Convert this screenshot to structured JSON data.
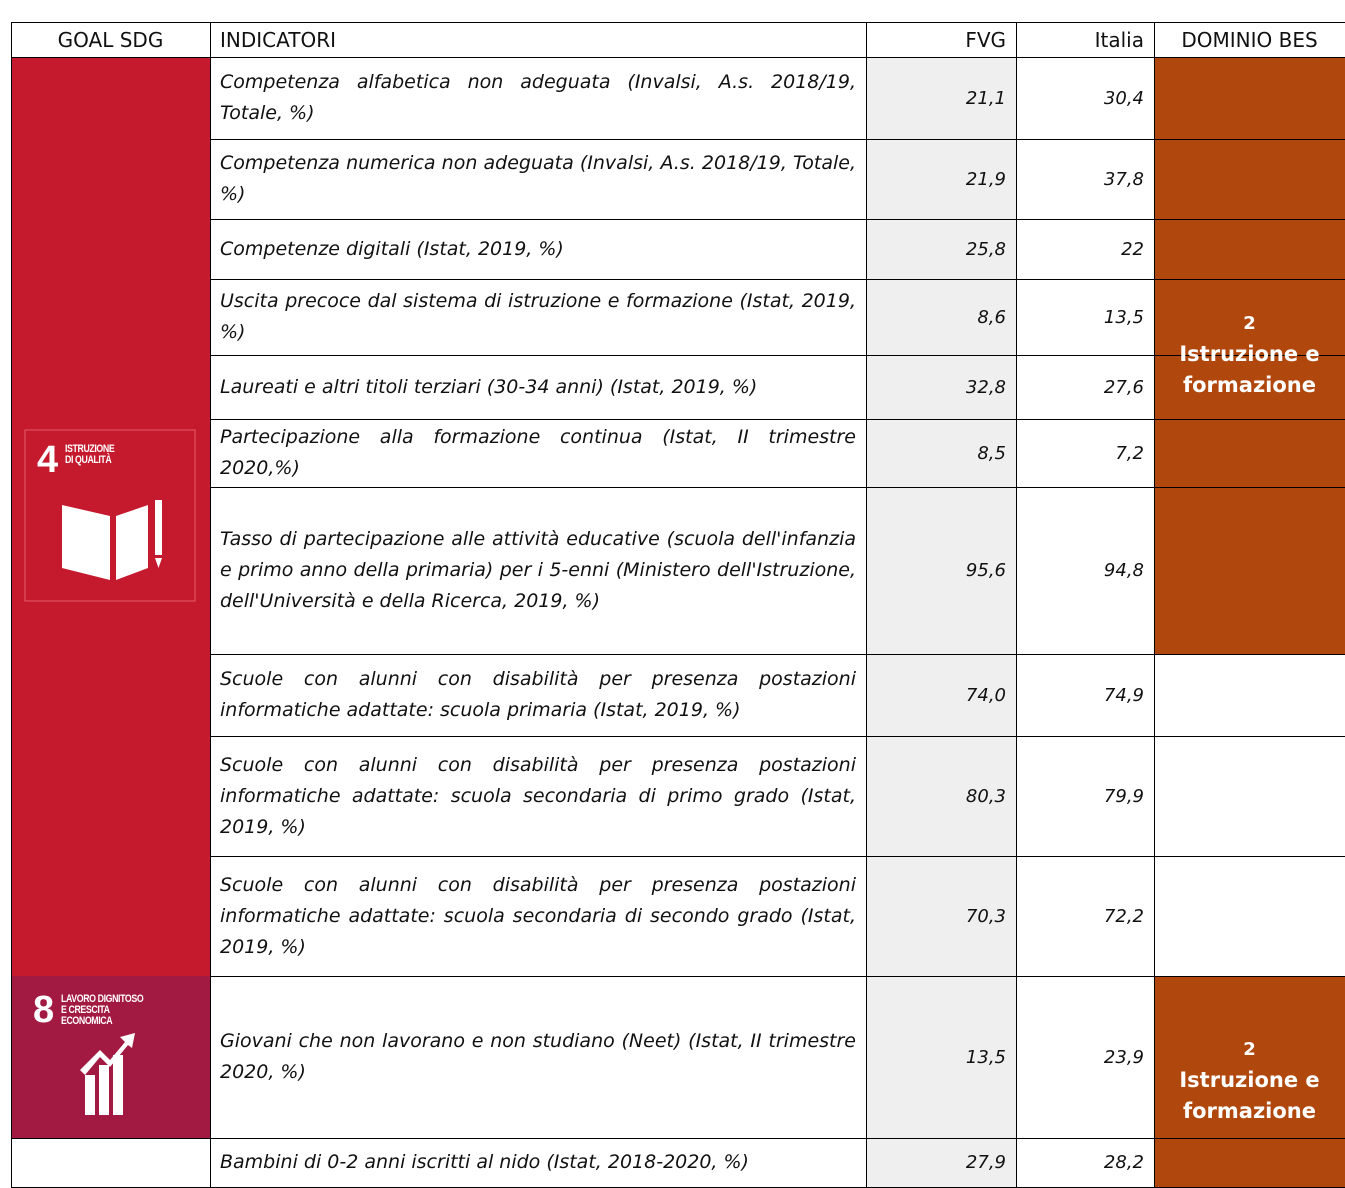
{
  "header": [
    "GOAL SDG",
    "INDICATORI",
    "FVG",
    "Italia",
    "DOMINIO BES"
  ],
  "goals": [
    {
      "number": "4",
      "lines": [
        "ISTRUZIONE",
        "DI QUALITÀ"
      ]
    },
    {
      "number": "8",
      "lines": [
        "LAVORO DIGNITOSO",
        "E CRESCITA",
        "ECONOMICA"
      ]
    }
  ],
  "domains": [
    {
      "number": "2",
      "lines": [
        "Istruzione e",
        "formazione"
      ]
    },
    {
      "number": "2",
      "lines": [
        "Istruzione e",
        "formazione"
      ]
    }
  ],
  "rows": [
    {
      "indicator": "Competenza alfabetica non adeguata (Invalsi, A.s. 2018/19, Totale, %)",
      "fvg": "21,1",
      "italia": "30,4"
    },
    {
      "indicator": "Competenza numerica non adeguata (Invalsi, A.s. 2018/19, Totale, %)",
      "fvg": "21,9",
      "italia": "37,8"
    },
    {
      "indicator": "Competenze digitali (Istat, 2019, %)",
      "fvg": "25,8",
      "italia": "22"
    },
    {
      "indicator": "Uscita precoce dal sistema di istruzione e formazione (Istat, 2019, %)",
      "fvg": "8,6",
      "italia": "13,5"
    },
    {
      "indicator": "Laureati e altri titoli terziari (30-34 anni) (Istat, 2019, %)",
      "fvg": "32,8",
      "italia": "27,6"
    },
    {
      "indicator": "Partecipazione alla formazione continua (Istat, II trimestre 2020,%)",
      "fvg": "8,5",
      "italia": "7,2"
    },
    {
      "indicator": "Tasso di partecipazione alle attività educative (scuola dell'infanzia e primo anno della primaria) per i 5-enni (Ministero dell'Istruzione, dell'Università e della Ricerca, 2019, %)",
      "fvg": "95,6",
      "italia": "94,8"
    },
    {
      "indicator": "Scuole con alunni con disabilità per presenza postazioni informatiche adattate: scuola primaria (Istat, 2019, %)",
      "fvg": "74,0",
      "italia": "74,9"
    },
    {
      "indicator": "Scuole con alunni con disabilità per presenza postazioni informatiche adattate: scuola secondaria di primo grado (Istat, 2019, %)",
      "fvg": "80,3",
      "italia": "79,9"
    },
    {
      "indicator": "Scuole con alunni con disabilità per presenza postazioni informatiche adattate: scuola secondaria di secondo grado (Istat, 2019, %)",
      "fvg": "70,3",
      "italia": "72,2"
    },
    {
      "indicator": "Giovani che non lavorano e non studiano (Neet) (Istat, II trimestre 2020, %)",
      "fvg": "13,5",
      "italia": "23,9"
    },
    {
      "indicator": "Bambini di 0-2 anni iscritti al nido (Istat, 2018-2020, %)",
      "fvg": "27,9",
      "italia": "28,2"
    }
  ]
}
